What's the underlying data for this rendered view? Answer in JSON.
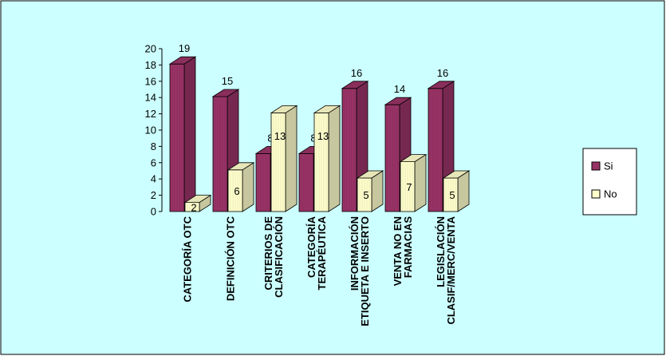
{
  "chart_data": {
    "type": "bar",
    "title": "",
    "xlabel": "",
    "ylabel": "",
    "ylim": [
      0,
      20
    ],
    "y_ticks": [
      0,
      2,
      4,
      6,
      8,
      10,
      12,
      14,
      16,
      18,
      20
    ],
    "categories": [
      [
        "CATEGORÍA OTC"
      ],
      [
        "DEFINICIÓN OTC"
      ],
      [
        "CRITERIOS DE",
        "CLASIFICACIÓN"
      ],
      [
        "CATEGORÍA",
        "TERAPÉUTICA"
      ],
      [
        "INFORMACIÓN",
        "ETIQUETA E INSERTO"
      ],
      [
        "VENTA NO EN",
        "FARMACIAS"
      ],
      [
        "LEGISLACIÓN",
        "CLASIF/MERC/VENTA"
      ]
    ],
    "series": [
      {
        "name": "Si",
        "values": [
          19,
          15,
          8,
          8,
          16,
          14,
          16
        ],
        "color": "#993366"
      },
      {
        "name": "No",
        "values": [
          2,
          6,
          13,
          13,
          5,
          7,
          5
        ],
        "color": "#FFFFCC"
      }
    ],
    "data_labels": true,
    "grid": false,
    "legend_position": "right",
    "background_color": "#CCFFFF"
  }
}
